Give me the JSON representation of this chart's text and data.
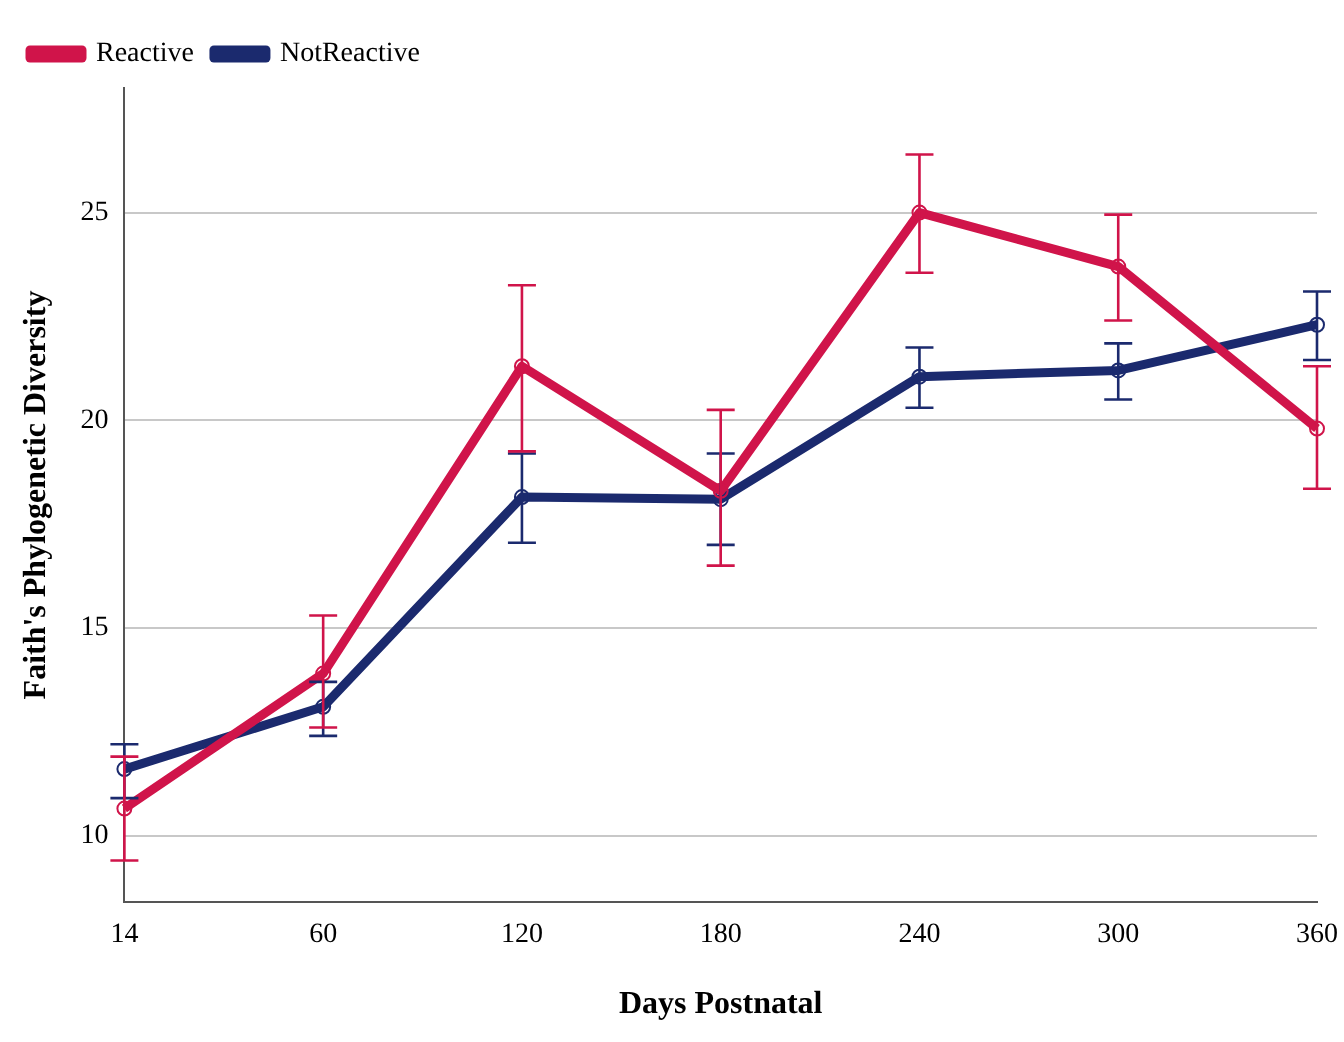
{
  "chart_data": {
    "type": "line",
    "xlabel": "Days Postnatal",
    "ylabel": "Faith's Phylogenetic Diversity",
    "categories": [
      "14",
      "60",
      "120",
      "180",
      "240",
      "300",
      "360"
    ],
    "series": [
      {
        "name": "NotReactive",
        "color": "#1b2a6e",
        "values": [
          11.6,
          13.1,
          18.15,
          18.1,
          21.05,
          21.2,
          22.3
        ],
        "errors": [
          [
            10.9,
            12.2
          ],
          [
            12.4,
            13.7
          ],
          [
            17.05,
            19.2
          ],
          [
            17.0,
            19.2
          ],
          [
            20.3,
            21.75
          ],
          [
            20.5,
            21.85
          ],
          [
            21.45,
            23.1
          ]
        ]
      },
      {
        "name": "Reactive",
        "color": "#d0144a",
        "values": [
          10.65,
          13.9,
          21.3,
          18.3,
          25.0,
          23.7,
          19.8
        ],
        "errors": [
          [
            9.4,
            11.9
          ],
          [
            12.6,
            15.3
          ],
          [
            19.25,
            23.25
          ],
          [
            16.5,
            20.25
          ],
          [
            23.55,
            26.4
          ],
          [
            22.4,
            24.95
          ],
          [
            18.35,
            21.3
          ]
        ]
      }
    ],
    "ylim": [
      8.4,
      28
    ],
    "yticks": [
      10,
      15,
      20,
      25
    ],
    "grid": "y",
    "legend": "top left",
    "marker": "circle",
    "line_style": "solid"
  }
}
